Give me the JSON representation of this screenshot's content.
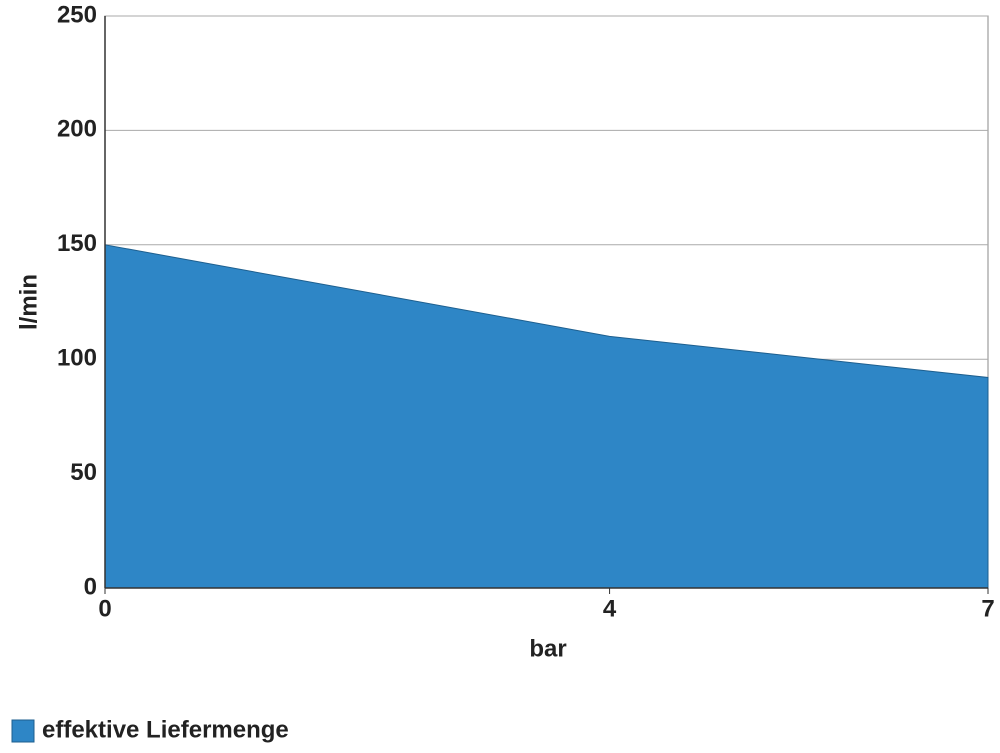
{
  "chart_data": {
    "type": "area",
    "x": [
      0,
      4,
      7
    ],
    "series": [
      {
        "name": "effektive Liefermenge",
        "color": "#2e86c6",
        "values": [
          150,
          110,
          92
        ]
      }
    ],
    "xlabel": "bar",
    "ylabel": "l/min",
    "xlim": [
      0,
      7
    ],
    "xticks": [
      0,
      4,
      7
    ],
    "ylim": [
      0,
      250
    ],
    "yticks": [
      0,
      50,
      100,
      150,
      200,
      250
    ],
    "grid": true,
    "legend": "bottom-left"
  }
}
